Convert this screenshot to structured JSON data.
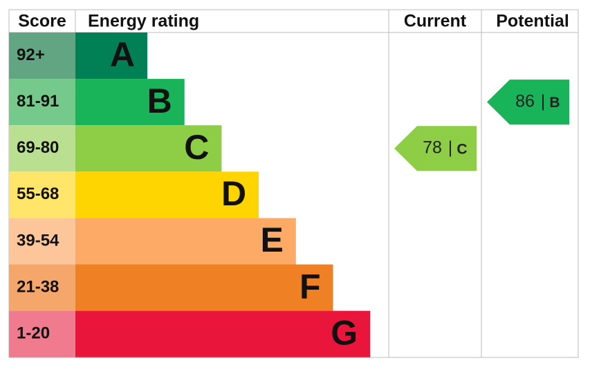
{
  "header": {
    "score": "Score",
    "rating": "Energy rating",
    "current": "Current",
    "potential": "Potential"
  },
  "bands": [
    {
      "score": "92+",
      "letter": "A",
      "color": "#008054",
      "score_color": "#62a583"
    },
    {
      "score": "81-91",
      "letter": "B",
      "color": "#19b459",
      "score_color": "#74c98b"
    },
    {
      "score": "69-80",
      "letter": "C",
      "color": "#8dce46",
      "score_color": "#badf90"
    },
    {
      "score": "55-68",
      "letter": "D",
      "color": "#ffd500",
      "score_color": "#ffe66a"
    },
    {
      "score": "39-54",
      "letter": "E",
      "color": "#fcaa65",
      "score_color": "#fdc69a"
    },
    {
      "score": "21-38",
      "letter": "F",
      "color": "#ef8023",
      "score_color": "#f4a66b"
    },
    {
      "score": "1-20",
      "letter": "G",
      "color": "#e9153b",
      "score_color": "#f07a8e"
    }
  ],
  "separator": "|",
  "current": {
    "value": 78,
    "rating": "C"
  },
  "potential": {
    "value": 86,
    "rating": "B"
  }
}
